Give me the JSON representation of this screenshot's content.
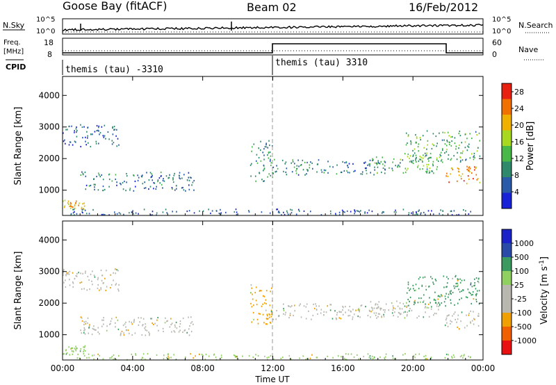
{
  "header": {
    "station": "Goose Bay (fitACF)",
    "beam": "Beam 02",
    "date": "16/Feb/2012"
  },
  "side_labels": {
    "nsky": "N.Sky",
    "freq_line1": "Freq.",
    "freq_line2": "[MHz]",
    "cpid": "CPID",
    "nsearch": "N.Search",
    "nave": "Nave"
  },
  "strip_ticks": {
    "noise_left_top": "10^5",
    "noise_left_bottom": "10^0",
    "noise_right_top": "10^5",
    "noise_right_bottom": "10^0",
    "freq_left_top": "18",
    "freq_left_bottom": "8",
    "nave_right_top": "60",
    "nave_right_bottom": "0"
  },
  "cpid": {
    "segment1": "themis (tau) -3310",
    "segment2": "themis (tau) 3310"
  },
  "colors": {
    "power_scale": [
      "#1a22d8",
      "#2a5aa8",
      "#2e8a6a",
      "#48b848",
      "#a8d820",
      "#f0b000",
      "#f07000",
      "#e82010"
    ],
    "velocity_scale": [
      "#e81010",
      "#f06000",
      "#f0a000",
      "#b8b8b0",
      "#b8b8b0",
      "#90d060",
      "#3a9a60",
      "#2a4aa8",
      "#1a22c8"
    ],
    "ground_scatter": "#b8b8b0",
    "dashed_marker": "#999999"
  },
  "chart_data": [
    {
      "type": "heatmap",
      "panel": "power",
      "xlabel": "",
      "ylabel": "Slant Range [km]",
      "y_ticks": [
        "1000",
        "2000",
        "3000",
        "4000"
      ],
      "ylim": [
        200,
        4600
      ],
      "xlim": [
        0,
        24
      ],
      "colorbar_label": "Power [dB]",
      "colorbar_ticks": [
        "4",
        "8",
        "12",
        "16",
        "20",
        "24",
        "28"
      ],
      "clim": [
        0,
        30
      ],
      "regions": [
        {
          "t": [
            0.0,
            1.3
          ],
          "r": [
            400,
            700
          ],
          "v": 20
        },
        {
          "t": [
            0.0,
            3.2
          ],
          "r": [
            2400,
            3100
          ],
          "v": 6
        },
        {
          "t": [
            1.0,
            7.5
          ],
          "r": [
            1000,
            1600
          ],
          "v": 8
        },
        {
          "t": [
            0.3,
            23.6
          ],
          "r": [
            230,
            420
          ],
          "v": 6
        },
        {
          "t": [
            10.7,
            12.0
          ],
          "r": [
            1300,
            2600
          ],
          "v": 10
        },
        {
          "t": [
            12.0,
            18.5
          ],
          "r": [
            1500,
            2000
          ],
          "v": 8
        },
        {
          "t": [
            17.5,
            21.5
          ],
          "r": [
            1550,
            2100
          ],
          "v": 12
        },
        {
          "t": [
            19.5,
            23.8
          ],
          "r": [
            1900,
            2900
          ],
          "v": 12
        },
        {
          "t": [
            21.8,
            23.8
          ],
          "r": [
            1200,
            1800
          ],
          "v": 22
        }
      ]
    },
    {
      "type": "heatmap",
      "panel": "velocity",
      "xlabel": "Time UT",
      "x_ticks": [
        "00:00",
        "04:00",
        "08:00",
        "12:00",
        "16:00",
        "20:00",
        "00:00"
      ],
      "ylabel": "Slant Range [km]",
      "y_ticks": [
        "1000",
        "2000",
        "3000",
        "4000"
      ],
      "ylim": [
        200,
        4600
      ],
      "xlim": [
        0,
        24
      ],
      "colorbar_label": "Velocity [m s^-1]",
      "colorbar_ticks": [
        "1000",
        "500",
        "100",
        "25",
        "-25",
        "-100",
        "-500",
        "-1000"
      ],
      "clim": [
        -1000,
        1000
      ],
      "ground_scatter": true,
      "regions": [
        {
          "t": [
            0.0,
            1.3
          ],
          "r": [
            400,
            700
          ],
          "v": 60
        },
        {
          "t": [
            0.0,
            3.2
          ],
          "r": [
            2400,
            3100
          ],
          "v": 0
        },
        {
          "t": [
            1.0,
            7.5
          ],
          "r": [
            1000,
            1600
          ],
          "v": 0
        },
        {
          "t": [
            0.3,
            23.6
          ],
          "r": [
            230,
            420
          ],
          "v": 40
        },
        {
          "t": [
            10.7,
            12.0
          ],
          "r": [
            1300,
            2600
          ],
          "v": -150
        },
        {
          "t": [
            12.0,
            18.5
          ],
          "r": [
            1500,
            2000
          ],
          "v": 0
        },
        {
          "t": [
            17.5,
            21.5
          ],
          "r": [
            1550,
            2100
          ],
          "v": 0
        },
        {
          "t": [
            19.5,
            23.8
          ],
          "r": [
            1900,
            2900
          ],
          "v": 120
        },
        {
          "t": [
            21.8,
            23.8
          ],
          "r": [
            1200,
            1800
          ],
          "v": 0
        }
      ]
    }
  ]
}
